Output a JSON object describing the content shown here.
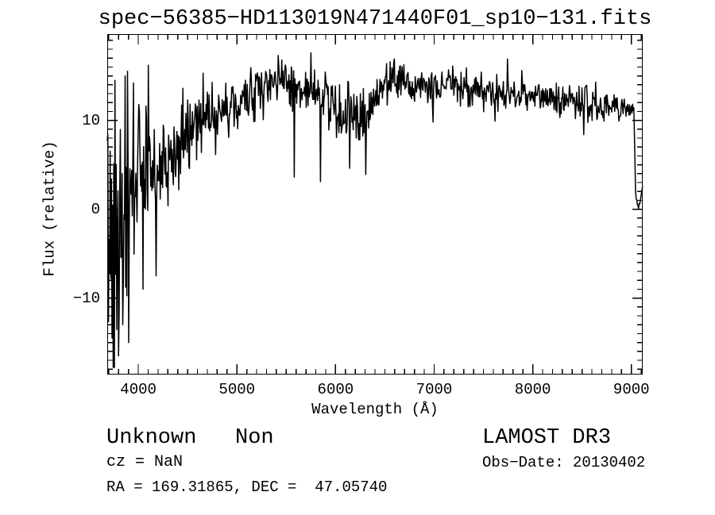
{
  "window": {
    "background": "#ffffff",
    "foreground": "#000000"
  },
  "chart_data": {
    "type": "line",
    "title": "spec−56385−HD113019N471440F01_sp10−131.fits",
    "xlabel": "Wavelength (Å)",
    "ylabel": "Flux (relative)",
    "xlim": [
      3685,
      9115
    ],
    "ylim": [
      -18.6,
      19.7
    ],
    "xticks": {
      "major": [
        4000,
        5000,
        6000,
        7000,
        8000,
        9000
      ],
      "minor_step": 100
    },
    "yticks": {
      "major": [
        -10,
        0,
        10
      ],
      "minor_step": 1
    },
    "axis_color": "#000000",
    "line_color": "#000000",
    "grid": false,
    "legend": "none",
    "series": [
      {
        "name": "spectrum",
        "anchors": [
          [
            3685,
            0,
            17
          ],
          [
            3720,
            -2,
            16
          ],
          [
            3760,
            -3,
            14.5
          ],
          [
            3800,
            -2,
            13.5
          ],
          [
            3850,
            -0.5,
            12
          ],
          [
            3900,
            2,
            10.5
          ],
          [
            3950,
            3,
            9.5
          ],
          [
            4000,
            4,
            8.5
          ],
          [
            4050,
            4.5,
            7.5
          ],
          [
            4100,
            5,
            6.5
          ],
          [
            4150,
            4.5,
            6
          ],
          [
            4200,
            4,
            5.5
          ],
          [
            4300,
            5,
            5
          ],
          [
            4400,
            6.5,
            4.5
          ],
          [
            4500,
            8,
            4.2
          ],
          [
            4600,
            9,
            4
          ],
          [
            4700,
            10,
            3.6
          ],
          [
            4800,
            10.5,
            3.3
          ],
          [
            4900,
            11.5,
            3.1
          ],
          [
            5000,
            12,
            3
          ],
          [
            5100,
            12.5,
            2.9
          ],
          [
            5200,
            13,
            2.9
          ],
          [
            5300,
            13.5,
            2.9
          ],
          [
            5400,
            14.3,
            2.8
          ],
          [
            5500,
            14.2,
            2.6
          ],
          [
            5600,
            13.4,
            2.5
          ],
          [
            5700,
            13,
            2.6
          ],
          [
            5800,
            13.2,
            2.8
          ],
          [
            5900,
            12.2,
            2.7
          ],
          [
            6000,
            11.2,
            2.7
          ],
          [
            6100,
            11,
            2.7
          ],
          [
            6200,
            10.6,
            2.7
          ],
          [
            6300,
            10.6,
            2.8
          ],
          [
            6400,
            12,
            2.5
          ],
          [
            6500,
            13.8,
            2.2
          ],
          [
            6600,
            15.3,
            2
          ],
          [
            6700,
            14.5,
            1.9
          ],
          [
            6800,
            14,
            1.8
          ],
          [
            6900,
            13.8,
            1.8
          ],
          [
            7000,
            13.5,
            2
          ],
          [
            7100,
            13.8,
            1.8
          ],
          [
            7200,
            14,
            1.8
          ],
          [
            7300,
            13.6,
            1.8
          ],
          [
            7400,
            13.3,
            1.9
          ],
          [
            7500,
            13.1,
            1.8
          ],
          [
            7600,
            12.7,
            2
          ],
          [
            7700,
            13,
            1.8
          ],
          [
            7800,
            13,
            1.7
          ],
          [
            7900,
            12.8,
            1.7
          ],
          [
            8000,
            12.6,
            1.7
          ],
          [
            8100,
            12.6,
            1.6
          ],
          [
            8200,
            12.4,
            1.6
          ],
          [
            8300,
            12.1,
            1.6
          ],
          [
            8400,
            12.1,
            1.7
          ],
          [
            8500,
            12,
            1.9
          ],
          [
            8600,
            11.8,
            1.9
          ],
          [
            8700,
            11.6,
            1.9
          ],
          [
            8800,
            11.5,
            2
          ],
          [
            8900,
            11.3,
            1.9
          ],
          [
            9000,
            11.1,
            1.5
          ],
          [
            9025,
            11,
            1
          ],
          [
            9045,
            1,
            0.6
          ],
          [
            9080,
            0.4,
            0.4
          ],
          [
            9115,
            2.6,
            0.3
          ]
        ],
        "spikes": [
          [
            3745,
            -17.8
          ],
          [
            3762,
            14.5
          ],
          [
            3800,
            -16.5
          ],
          [
            3840,
            -13
          ],
          [
            3868,
            15
          ],
          [
            3905,
            -15
          ],
          [
            3950,
            14.2
          ],
          [
            4048,
            -9
          ],
          [
            4102,
            16.2
          ],
          [
            4180,
            -7.5
          ],
          [
            4450,
            13.6
          ],
          [
            4660,
            15.3
          ],
          [
            5420,
            17.3
          ],
          [
            5455,
            16.8
          ],
          [
            5582,
            3.6
          ],
          [
            5752,
            17.6
          ],
          [
            5850,
            3.1
          ],
          [
            6145,
            4.6
          ],
          [
            6308,
            3.9
          ],
          [
            6595,
            16.9
          ],
          [
            6990,
            9.8
          ],
          [
            7330,
            15.9
          ],
          [
            7620,
            9.9
          ],
          [
            7745,
            16.9
          ],
          [
            7890,
            15.6
          ],
          [
            8520,
            8.4
          ],
          [
            8640,
            14.3
          ]
        ]
      }
    ],
    "noise": {
      "seed": 20130402,
      "samples": 900,
      "scale": 1.5,
      "clamp": [
        -18.45,
        19.55
      ]
    }
  },
  "annotations": {
    "classification": "Unknown   Non",
    "cz": "cz = NaN",
    "ra_dec": "RA = 169.31865, DEC =  47.05740",
    "survey": "LAMOST DR3",
    "obs_date": "Obs−Date: 20130402"
  }
}
